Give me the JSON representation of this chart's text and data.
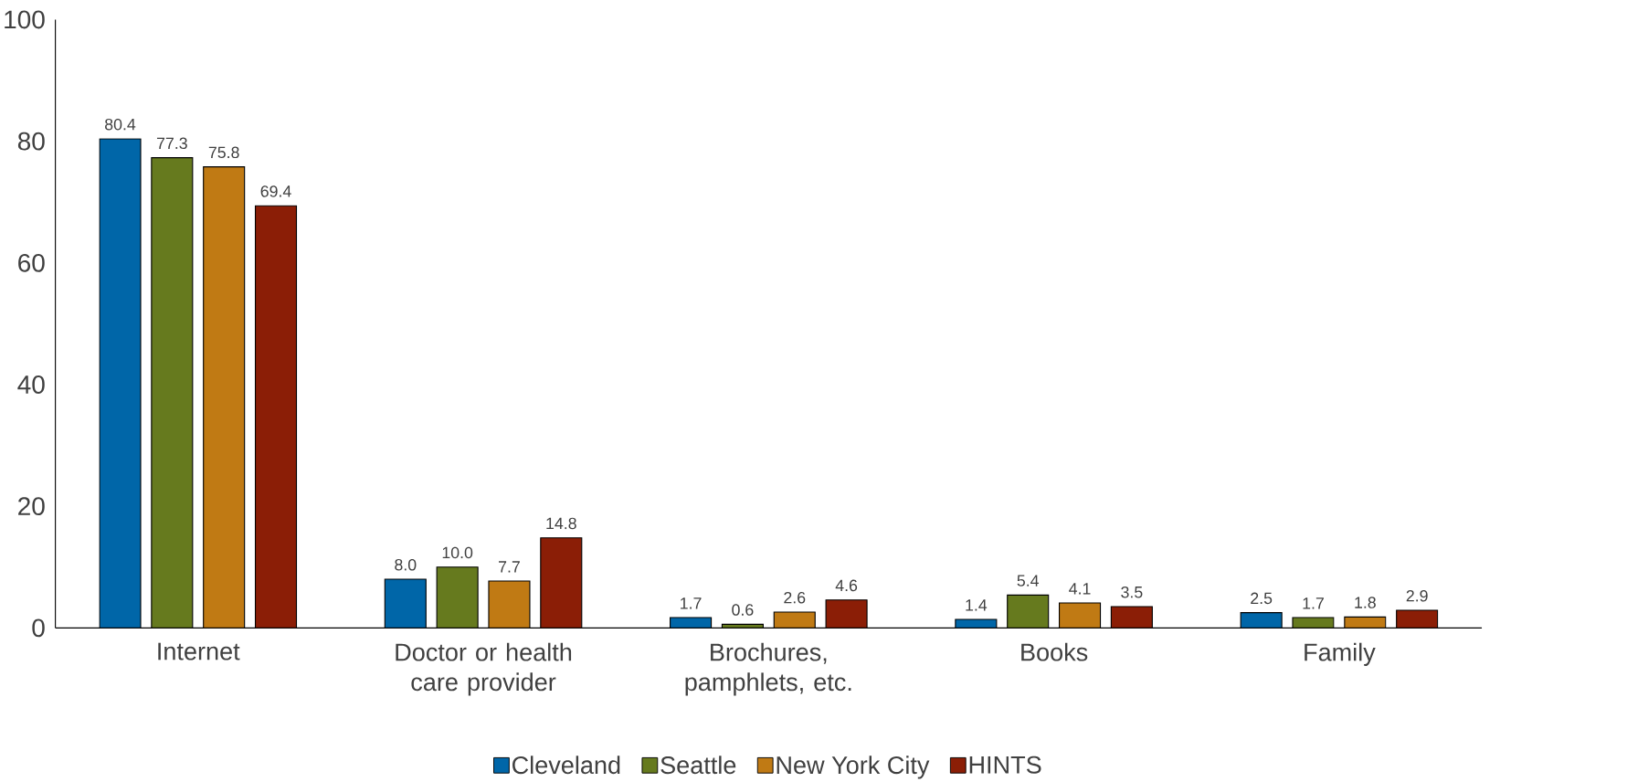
{
  "chart_data": {
    "type": "bar",
    "categories": [
      "Internet",
      "Doctor or health care provider",
      "Brochures, pamphlets, etc.",
      "Books",
      "Family"
    ],
    "series": [
      {
        "name": "Cleveland",
        "color": "#0066a8",
        "values": [
          80.4,
          8.0,
          1.7,
          1.4,
          2.5
        ],
        "value_labels": [
          "80.4",
          "8.0",
          "1.7",
          "1.4",
          "2.5"
        ]
      },
      {
        "name": "Seattle",
        "color": "#667a1e",
        "values": [
          77.3,
          10.0,
          0.6,
          5.4,
          1.7
        ],
        "value_labels": [
          "77.3",
          "10.0",
          "0.6",
          "5.4",
          "1.7"
        ]
      },
      {
        "name": "New York City",
        "color": "#c07a14",
        "values": [
          75.8,
          7.7,
          2.6,
          4.1,
          1.8
        ],
        "value_labels": [
          "75.8",
          "7.7",
          "2.6",
          "4.1",
          "1.8"
        ]
      },
      {
        "name": "HINTS",
        "color": "#8b1e06",
        "values": [
          69.4,
          14.8,
          4.6,
          3.5,
          2.9
        ],
        "value_labels": [
          "69.4",
          "14.8",
          "4.6",
          "3.5",
          "2.9"
        ]
      }
    ],
    "ylim": [
      0,
      100
    ],
    "yticks": [
      0,
      20,
      40,
      60,
      80,
      100
    ],
    "legend": "bottom"
  }
}
